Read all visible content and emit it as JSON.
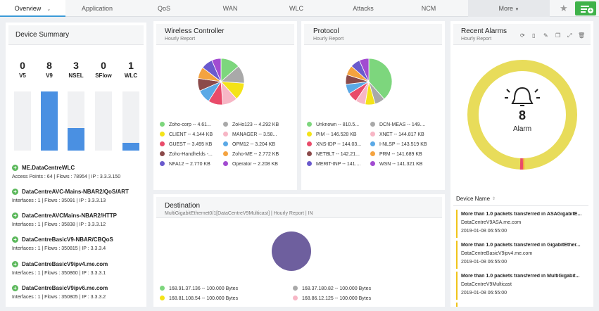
{
  "nav": {
    "tabs": [
      "Overview",
      "Application",
      "QoS",
      "WAN",
      "WLC",
      "Attacks",
      "NCM"
    ],
    "more_label": "More"
  },
  "device_summary": {
    "title": "Device Summary",
    "stats": [
      {
        "value": "0",
        "label": "V5",
        "fill": 0
      },
      {
        "value": "8",
        "label": "V9",
        "fill": 1.0
      },
      {
        "value": "3",
        "label": "NSEL",
        "fill": 0.375
      },
      {
        "value": "0",
        "label": "SFlow",
        "fill": 0
      },
      {
        "value": "1",
        "label": "WLC",
        "fill": 0.125
      }
    ],
    "devices": [
      {
        "name": "ME.DataCentreWLC",
        "meta": "Access Points : 64  |  Flows : 78954  |  IP : 3.3.3.150"
      },
      {
        "name": "DataCentreAVC-Mains-NBAR2/QoS/ART",
        "meta": "Interfaces : 1  |  Flows : 35091  |  IP : 3.3.3.13"
      },
      {
        "name": "DataCentreAVCMains-NBAR2/HTTP",
        "meta": "Interfaces : 1  |  Flows : 35838  |  IP : 3.3.3.12"
      },
      {
        "name": "DataCentreBasicV9-NBAR/CBQoS",
        "meta": "Interfaces : 1  |  Flows : 350815  |  IP : 3.3.3.4"
      },
      {
        "name": "DataCentreBasicV9ipv4.me.com",
        "meta": "Interfaces : 1  |  Flows : 350860  |  IP : 3.3.3.1"
      },
      {
        "name": "DataCentreBasicV9ipv6.me.com",
        "meta": "Interfaces : 1  |  Flows : 350805  |  IP : 3.3.3.2"
      }
    ]
  },
  "wireless": {
    "title": "Wireless Controller",
    "subtitle": "Hourly Report",
    "legend": [
      {
        "label": "Zoho-corp -- 4.61...",
        "color": "#7dd67d"
      },
      {
        "label": "ZoHo123 -- 4.292 KB",
        "color": "#a9a9a9"
      },
      {
        "label": "CLIENT -- 4.144 KB",
        "color": "#f4e318"
      },
      {
        "label": "MANAGER -- 3.58...",
        "color": "#f7b6c5"
      },
      {
        "label": "GUEST -- 3.495 KB",
        "color": "#e94b6a"
      },
      {
        "label": "OPM12 -- 3.204 KB",
        "color": "#5aa9e6"
      },
      {
        "label": "Zoho-Handhelds -...",
        "color": "#8b4a4a"
      },
      {
        "label": "Zoho-ME -- 2.772 KB",
        "color": "#f4a340"
      },
      {
        "label": "NFA12 -- 2.770 KB",
        "color": "#6a5acd"
      },
      {
        "label": "Operator -- 2.208 KB",
        "color": "#a24bd1"
      }
    ],
    "chart_data": {
      "type": "pie",
      "categories": [
        "Zoho-corp",
        "ZoHo123",
        "CLIENT",
        "MANAGER",
        "GUEST",
        "OPM12",
        "Zoho-Handhelds",
        "Zoho-ME",
        "NFA12",
        "Operator"
      ],
      "values": [
        4.61,
        4.292,
        4.144,
        3.58,
        3.495,
        3.204,
        3.0,
        2.772,
        2.77,
        2.208
      ]
    }
  },
  "protocol": {
    "title": "Protocol",
    "subtitle": "Hourly Report",
    "legend": [
      {
        "label": "Unknown -- 810.5...",
        "color": "#7dd67d"
      },
      {
        "label": "DCN-MEAS -- 149....",
        "color": "#a9a9a9"
      },
      {
        "label": "PIM -- 146.528 KB",
        "color": "#f4e318"
      },
      {
        "label": "XNET -- 144.817 KB",
        "color": "#f7b6c5"
      },
      {
        "label": "XNS-IDP -- 144.03...",
        "color": "#e94b6a"
      },
      {
        "label": "I-NLSP -- 143.519 KB",
        "color": "#5aa9e6"
      },
      {
        "label": "NETBLT -- 142.21...",
        "color": "#8b4a4a"
      },
      {
        "label": "PRM -- 141.689 KB",
        "color": "#f4a340"
      },
      {
        "label": "MERIT-INP -- 141....",
        "color": "#6a5acd"
      },
      {
        "label": "WSN -- 141.321 KB",
        "color": "#a24bd1"
      }
    ],
    "chart_data": {
      "type": "pie",
      "categories": [
        "Unknown",
        "DCN-MEAS",
        "PIM",
        "XNET",
        "XNS-IDP",
        "I-NLSP",
        "NETBLT",
        "PRM",
        "MERIT-INP",
        "WSN"
      ],
      "values": [
        810.5,
        149.0,
        146.528,
        144.817,
        144.03,
        143.519,
        142.21,
        141.689,
        141.0,
        141.321
      ]
    }
  },
  "alarms": {
    "title": "Recent Alarms",
    "subtitle": "Hourly Report",
    "count": "8",
    "count_label": "Alarm",
    "column_header": "Device Name",
    "rows": [
      {
        "text": "More than 1.0 packets transferred in ASAGigabitE...",
        "device": "DataCentreV9ASA.me.com",
        "time": "2019-01-08 06:55:00"
      },
      {
        "text": "More than 1.0 packets transferred in GigabitEther...",
        "device": "DataCentreBasicV9ipv4.me.com",
        "time": "2019-01-08 06:55:00"
      },
      {
        "text": "More than 1.0 packets transferred in MultiGigabit...",
        "device": "DataCentreV9Multicast",
        "time": "2019-01-08 06:55:00"
      }
    ],
    "colors": {
      "ring": "#e8dc5a",
      "critical": "#e94b6a",
      "major": "#f4a340"
    }
  },
  "destination": {
    "title": "Destination",
    "subtitle": "MultiGigabitEthernet0/1[DataCentreV9Multicast] | Hourly Report | IN",
    "legend": [
      {
        "label": "168.91.37.136 -- 100.000 Bytes",
        "color": "#7dd67d"
      },
      {
        "label": "168.37.180.82 -- 100.000 Bytes",
        "color": "#a9a9a9"
      },
      {
        "label": "168.81.108.54 -- 100.000 Bytes",
        "color": "#f4e318"
      },
      {
        "label": "168.86.12.125 -- 100.000 Bytes",
        "color": "#f7b6c5"
      }
    ],
    "pie_color": "#6e5f9e"
  }
}
